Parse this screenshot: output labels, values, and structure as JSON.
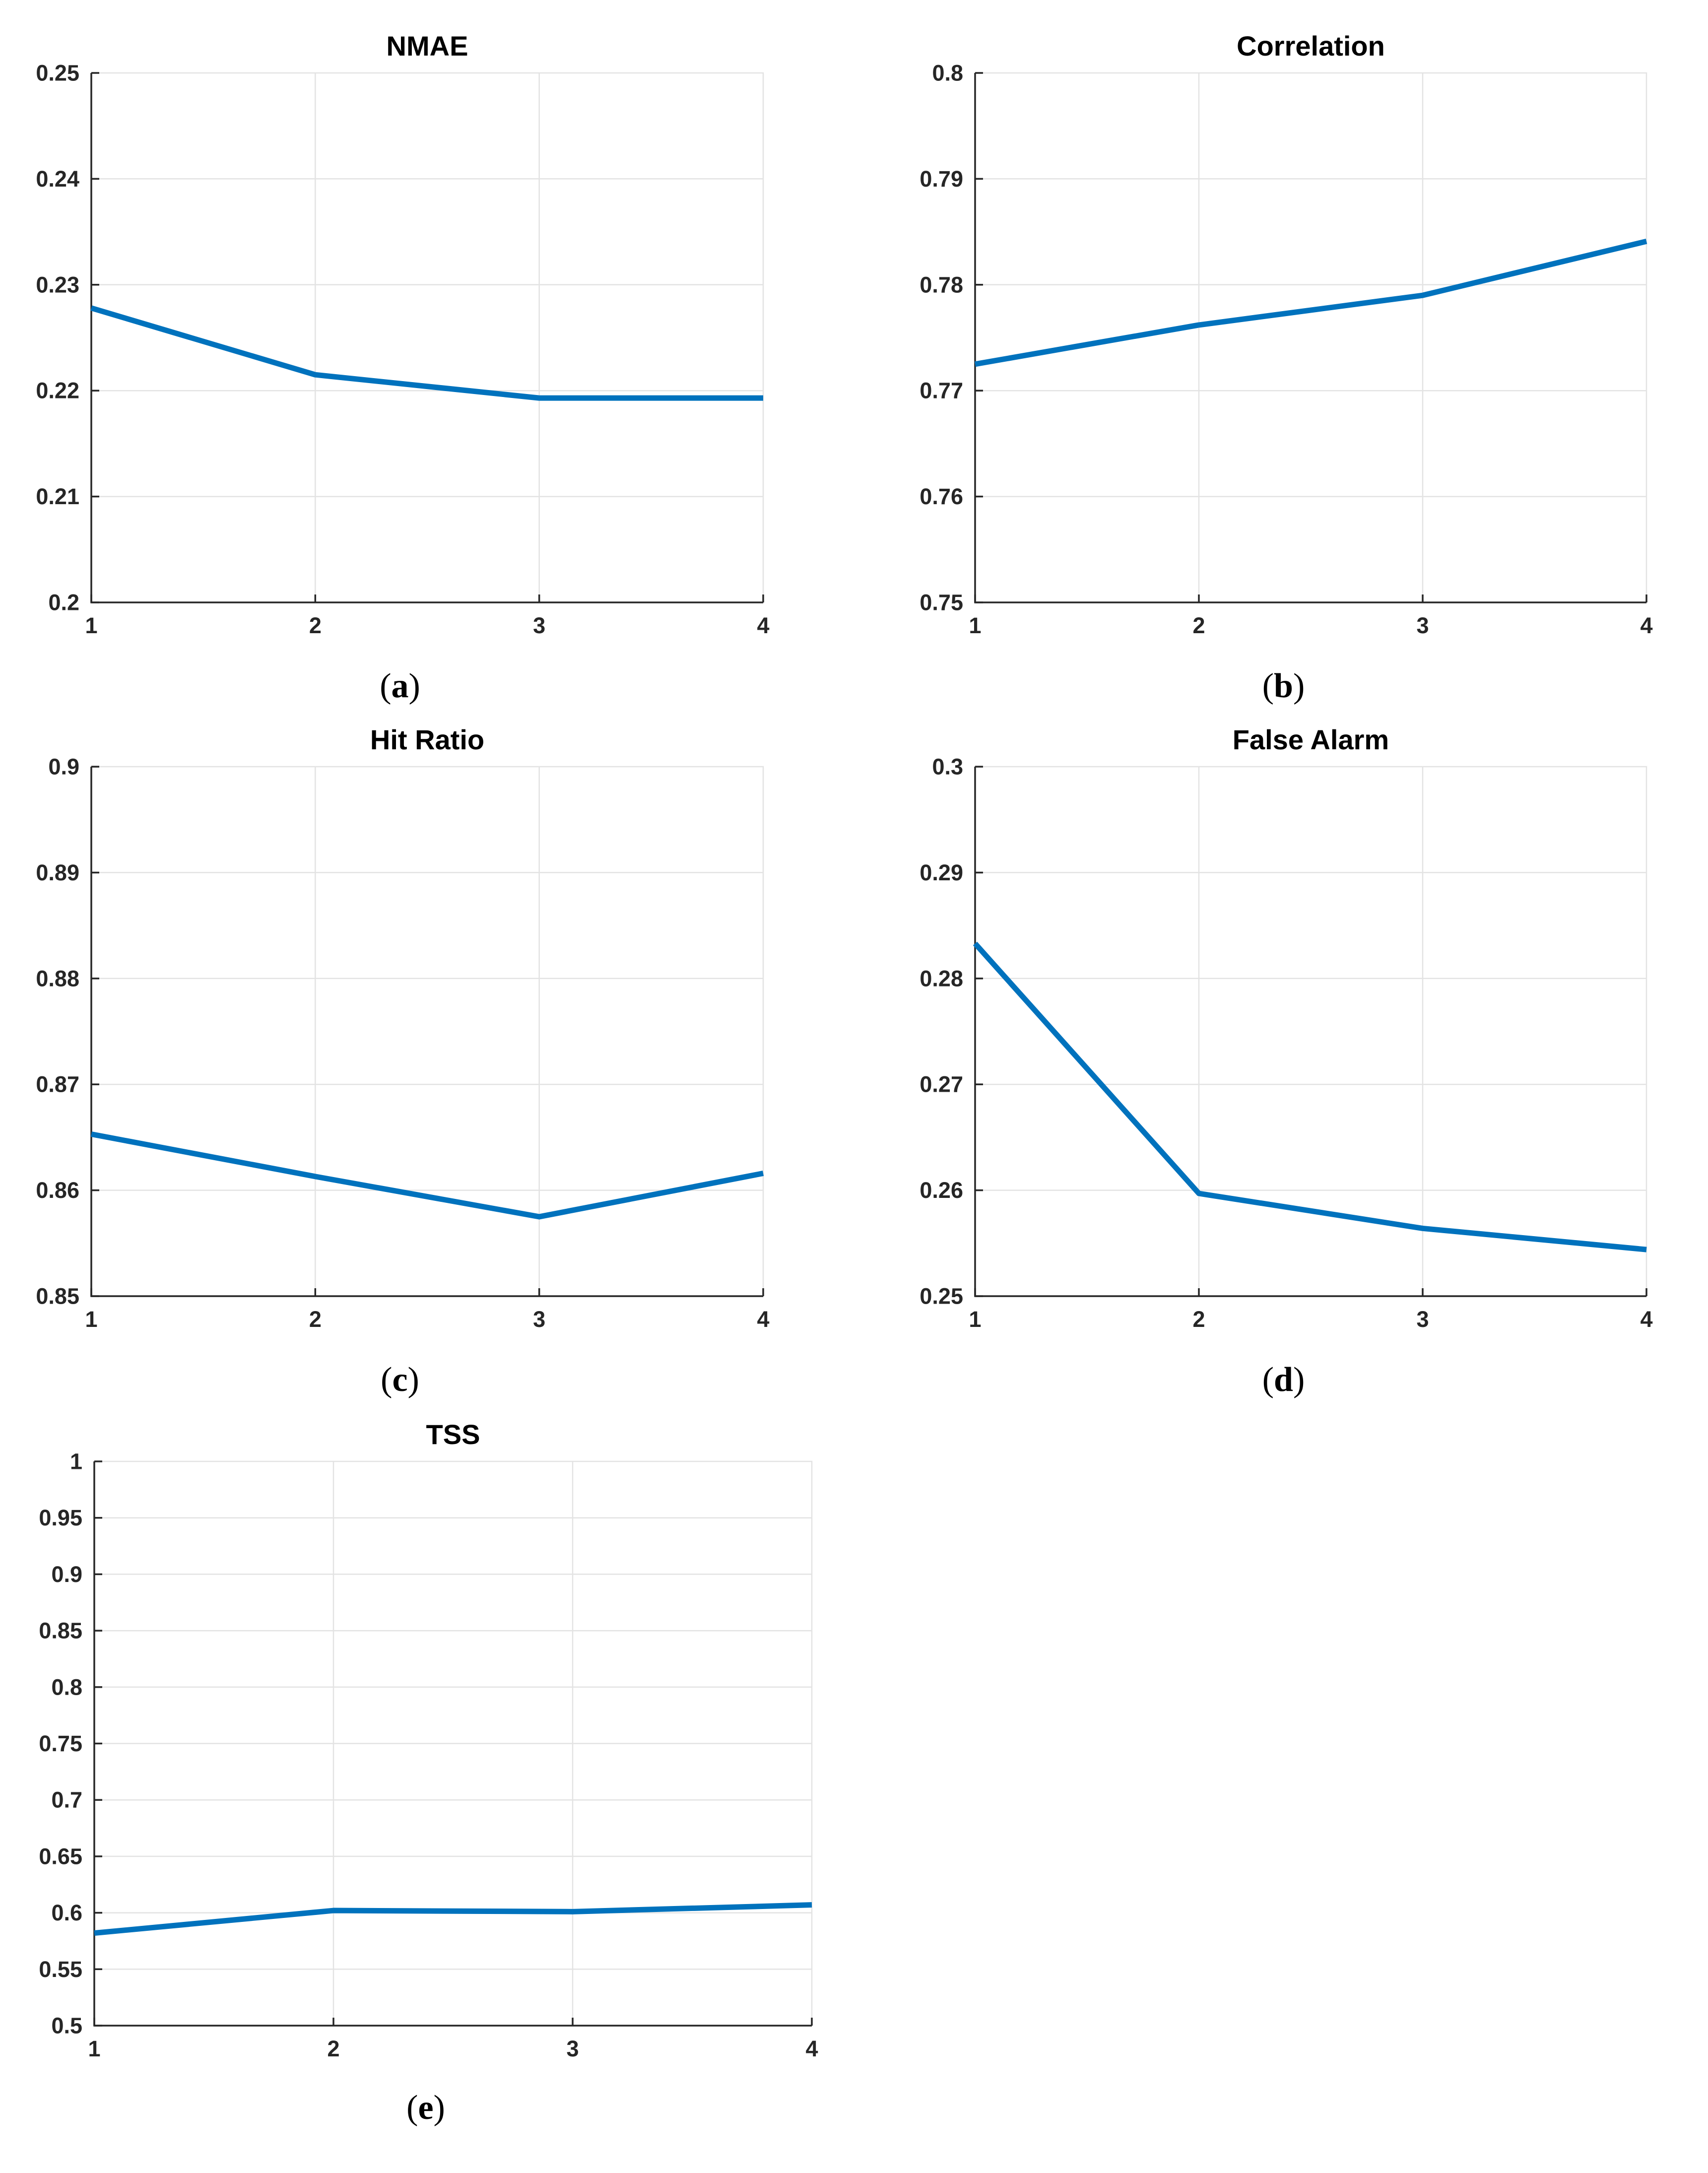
{
  "styles": {
    "line_color": "#0072BD",
    "grid_color": "#E3E3E3",
    "axis_color": "#262626",
    "title_color": "#000000",
    "background": "#FFFFFF"
  },
  "chart_data": [
    {
      "type": "line",
      "id": "nmae",
      "title": "NMAE",
      "caption": {
        "open": "(",
        "letter": "a",
        "close": ")"
      },
      "x": [
        1,
        2,
        3,
        4
      ],
      "values": [
        0.2278,
        0.2215,
        0.2193,
        0.2193
      ],
      "xlim": [
        1,
        4
      ],
      "ylim": [
        0.2,
        0.25
      ],
      "xticks": [
        1,
        2,
        3,
        4
      ],
      "xtick_labels": [
        "1",
        "2",
        "3",
        "4"
      ],
      "yticks": [
        0.2,
        0.21,
        0.22,
        0.23,
        0.24,
        0.25
      ],
      "ytick_labels": [
        "0.2",
        "0.21",
        "0.22",
        "0.23",
        "0.24",
        "0.25"
      ],
      "grid": true,
      "legend": null,
      "line_color": "#0072BD"
    },
    {
      "type": "line",
      "id": "correlation",
      "title": "Correlation",
      "caption": {
        "open": "(",
        "letter": "b",
        "close": ")"
      },
      "x": [
        1,
        2,
        3,
        4
      ],
      "values": [
        0.7725,
        0.7762,
        0.779,
        0.7841
      ],
      "xlim": [
        1,
        4
      ],
      "ylim": [
        0.75,
        0.8
      ],
      "xticks": [
        1,
        2,
        3,
        4
      ],
      "xtick_labels": [
        "1",
        "2",
        "3",
        "4"
      ],
      "yticks": [
        0.75,
        0.76,
        0.77,
        0.78,
        0.79,
        0.8
      ],
      "ytick_labels": [
        "0.75",
        "0.76",
        "0.77",
        "0.78",
        "0.79",
        "0.8"
      ],
      "grid": true,
      "legend": null,
      "line_color": "#0072BD"
    },
    {
      "type": "line",
      "id": "hit-ratio",
      "title": "Hit Ratio",
      "caption": {
        "open": "(",
        "letter": "c",
        "close": ")"
      },
      "x": [
        1,
        2,
        3,
        4
      ],
      "values": [
        0.8653,
        0.8613,
        0.8575,
        0.8616
      ],
      "xlim": [
        1,
        4
      ],
      "ylim": [
        0.85,
        0.9
      ],
      "xticks": [
        1,
        2,
        3,
        4
      ],
      "xtick_labels": [
        "1",
        "2",
        "3",
        "4"
      ],
      "yticks": [
        0.85,
        0.86,
        0.87,
        0.88,
        0.89,
        0.9
      ],
      "ytick_labels": [
        "0.85",
        "0.86",
        "0.87",
        "0.88",
        "0.89",
        "0.9"
      ],
      "grid": true,
      "legend": null,
      "line_color": "#0072BD"
    },
    {
      "type": "line",
      "id": "false-alarm",
      "title": "False Alarm",
      "caption": {
        "open": "(",
        "letter": "d",
        "close": ")"
      },
      "x": [
        1,
        2,
        3,
        4
      ],
      "values": [
        0.2833,
        0.2597,
        0.2564,
        0.2544
      ],
      "xlim": [
        1,
        4
      ],
      "ylim": [
        0.25,
        0.3
      ],
      "xticks": [
        1,
        2,
        3,
        4
      ],
      "xtick_labels": [
        "1",
        "2",
        "3",
        "4"
      ],
      "yticks": [
        0.25,
        0.26,
        0.27,
        0.28,
        0.29,
        0.3
      ],
      "ytick_labels": [
        "0.25",
        "0.26",
        "0.27",
        "0.28",
        "0.29",
        "0.3"
      ],
      "grid": true,
      "legend": null,
      "line_color": "#0072BD"
    },
    {
      "type": "line",
      "id": "tss",
      "title": "TSS",
      "caption": {
        "open": "(",
        "letter": "e",
        "close": ")"
      },
      "x": [
        1,
        2,
        3,
        4
      ],
      "values": [
        0.582,
        0.602,
        0.601,
        0.607
      ],
      "xlim": [
        1,
        4
      ],
      "ylim": [
        0.5,
        1.0
      ],
      "xticks": [
        1,
        2,
        3,
        4
      ],
      "xtick_labels": [
        "1",
        "2",
        "3",
        "4"
      ],
      "yticks": [
        0.5,
        0.55,
        0.6,
        0.65,
        0.7,
        0.75,
        0.8,
        0.85,
        0.9,
        0.95,
        1.0
      ],
      "ytick_labels": [
        "0.5",
        "0.55",
        "0.6",
        "0.65",
        "0.7",
        "0.75",
        "0.8",
        "0.85",
        "0.9",
        "0.95",
        "1"
      ],
      "grid": true,
      "legend": null,
      "line_color": "#0072BD"
    }
  ]
}
